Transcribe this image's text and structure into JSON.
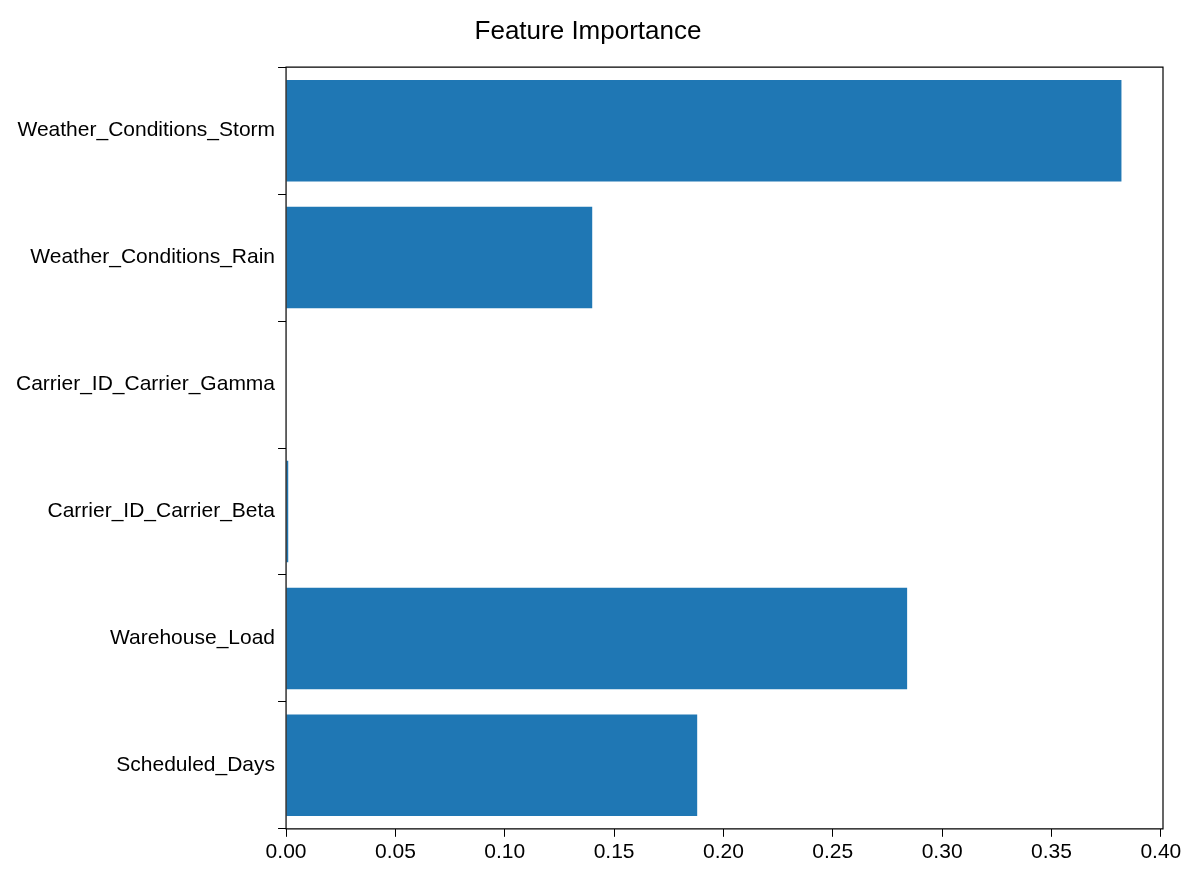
{
  "chart_data": {
    "type": "bar",
    "orientation": "horizontal",
    "title": "Feature Importance",
    "categories": [
      "Weather_Conditions_Storm",
      "Weather_Conditions_Rain",
      "Carrier_ID_Carrier_Gamma",
      "Carrier_ID_Carrier_Beta",
      "Warehouse_Load",
      "Scheduled_Days"
    ],
    "values": [
      0.382,
      0.14,
      0.0,
      0.001,
      0.284,
      0.188
    ],
    "color": "#1f77b4",
    "xlim": [
      0,
      0.401
    ],
    "xticks": [
      {
        "value": 0,
        "label": "0.00"
      },
      {
        "value": 0.05,
        "label": "0.05"
      },
      {
        "value": 0.1,
        "label": "0.10"
      },
      {
        "value": 0.15,
        "label": "0.15"
      },
      {
        "value": 0.2,
        "label": "0.20"
      },
      {
        "value": 0.25,
        "label": "0.25"
      },
      {
        "value": 0.3,
        "label": "0.30"
      },
      {
        "value": 0.35,
        "label": "0.35"
      },
      {
        "value": 0.4,
        "label": "0.40"
      }
    ],
    "grid": false
  }
}
